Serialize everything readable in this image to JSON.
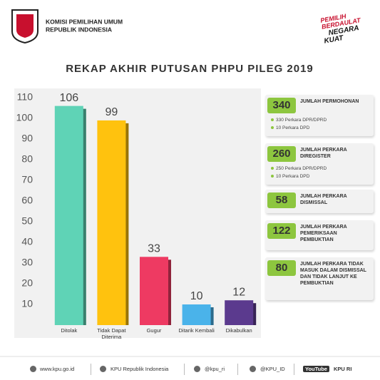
{
  "header": {
    "org": [
      "KOMISI PEMILIHAN UMUM",
      "REPUBLIK INDONESIA"
    ],
    "slogan": [
      "PEMILIH",
      "BERDAULAT",
      "NEGARA",
      "KUAT"
    ]
  },
  "chart_data": {
    "type": "bar",
    "title": "REKAP AKHIR PUTUSAN PHPU PILEG 2019",
    "categories": [
      "Ditolak",
      "Tidak Dapat Diterima",
      "Gugur",
      "Ditarik Kembali",
      "Dikabulkan"
    ],
    "values": [
      106,
      99,
      33,
      10,
      12
    ],
    "colors": [
      "#5fd3b6",
      "#ffc20e",
      "#ee3a62",
      "#4ab3ea",
      "#5b3a8e"
    ],
    "ylim": [
      0,
      110
    ],
    "yticks": [
      10,
      20,
      30,
      40,
      50,
      60,
      70,
      80,
      90,
      100,
      110
    ]
  },
  "summary": [
    {
      "number": "340",
      "label": "JUMLAH PERMOHONAN",
      "items": [
        "330 Perkara DPR/DPRD",
        "10 Perkara DPD"
      ]
    },
    {
      "number": "260",
      "label": "JUMLAH PERKARA DIREGISTER",
      "items": [
        "250 Perkara DPR/DPRD",
        "10 Perkara DPD"
      ]
    },
    {
      "number": "58",
      "label": "JUMLAH PERKARA DISMISSAL",
      "items": []
    },
    {
      "number": "122",
      "label": "JUMLAH PERKARA PEMERIKSAAN PEMBUKTIAN",
      "items": []
    },
    {
      "number": "80",
      "label": "JUMLAH PERKARA TIDAK MASUK DALAM DISMISSAL DAN TIDAK LANJUT KE PEMBUKTIAN",
      "items": []
    }
  ],
  "footer": [
    "www.kpu.go.id",
    "KPU Republik Indonesia",
    "@kpu_ri",
    "@KPU_ID",
    "YouTube",
    "KPU RI"
  ]
}
